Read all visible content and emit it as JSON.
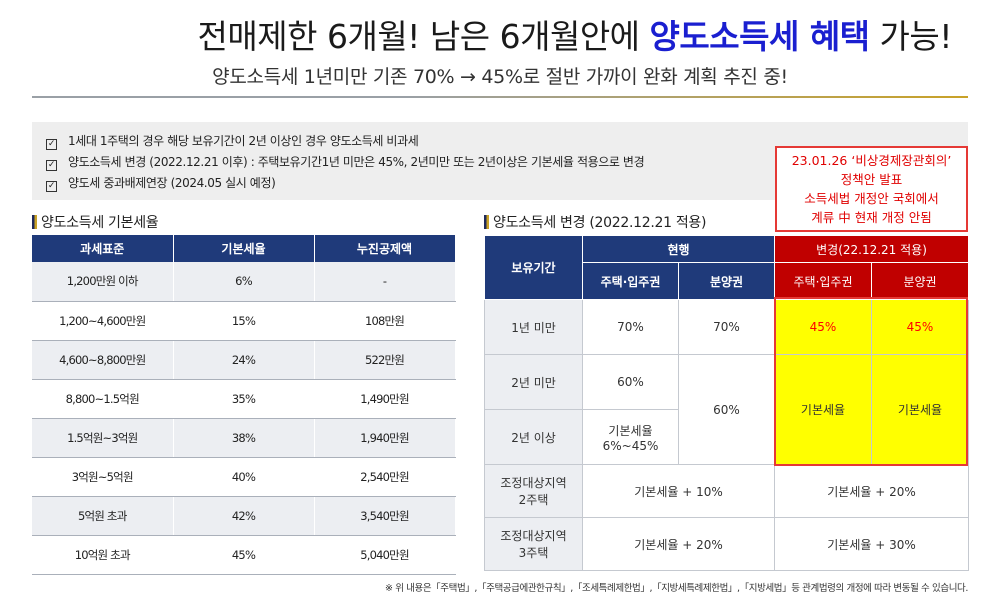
{
  "header": {
    "title_part1": "전매제한 6개월! 남은 6개월안에 ",
    "title_highlight": "양도소득세 혜택",
    "title_part2": " 가능!",
    "subtitle": "양도소득세 1년미만 기존 70% → 45%로 절반 가까이 완화 계획 추진 중!"
  },
  "notes": [
    "1세대 1주택의 경우 해당 보유기간이 2년 이상인 경우 양도소득세 비과세",
    "양도소득세 변경 (2022.12.21 이후) : 주택보유기간1년 미만은 45%, 2년미만 또는 2년이상은 기본세율 적용으로 변경",
    "양도세 중과배제연장 (2024.05 실시 예정)"
  ],
  "redbox": {
    "line1": "23.01.26 ‘비상경제장관회의’",
    "line2": "정책안 발표",
    "line3": "소득세법 개정안 국회에서",
    "line4": "계류 中 현재 개정 안됨"
  },
  "basic_table": {
    "title": "양도소득세 기본세율",
    "headers": [
      "과세표준",
      "기본세율",
      "누진공제액"
    ],
    "rows": [
      [
        "1,200만원 이하",
        "6%",
        "-"
      ],
      [
        "1,200~4,600만원",
        "15%",
        "108만원"
      ],
      [
        "4,600~8,800만원",
        "24%",
        "522만원"
      ],
      [
        "8,800~1.5억원",
        "35%",
        "1,490만원"
      ],
      [
        "1.5억원~3억원",
        "38%",
        "1,940만원"
      ],
      [
        "3억원~5억원",
        "40%",
        "2,540만원"
      ],
      [
        "5억원 초과",
        "42%",
        "3,540만원"
      ],
      [
        "10억원 초과",
        "45%",
        "5,040만원"
      ]
    ]
  },
  "change_table": {
    "title": "양도소득세 변경 (2022.12.21 적용)",
    "h_period": "보유기간",
    "h_current": "현행",
    "h_change": "변경(22.12.21 적용)",
    "h_house": "주택·입주권",
    "h_presale": "분양권",
    "r1_label": "1년 미만",
    "r1_cur_house": "70%",
    "r1_cur_presale": "70%",
    "r1_new_house": "45%",
    "r1_new_presale": "45%",
    "r2_label": "2년 미만",
    "r2_cur_house": "60%",
    "r23_cur_presale": "60%",
    "r23_new_house": "기본세율",
    "r23_new_presale": "기본세율",
    "r3_label": "2년 이상",
    "r3_cur_house_a": "기본세율",
    "r3_cur_house_b": "6%~45%",
    "r4_label_a": "조정대상지역",
    "r4_label_b": "2주택",
    "r4_cur": "기본세율 + 10%",
    "r4_new": "기본세율 + 20%",
    "r5_label_a": "조정대상지역",
    "r5_label_b": "3주택",
    "r5_cur": "기본세율 + 20%",
    "r5_new": "기본세율 + 30%"
  },
  "footnote": "※ 위 내용은「주택법」,「주택공급에관한규칙」,「조세특례제한법」,「지방세특례제한법」,「지방세법」등  관계법령의 개정에  따라 변동될 수 있습니다.",
  "colors": {
    "navy": "#1f3a7a",
    "highlight_blue": "#1a1fd0",
    "red": "#c00000",
    "yellow": "#ffff00"
  }
}
